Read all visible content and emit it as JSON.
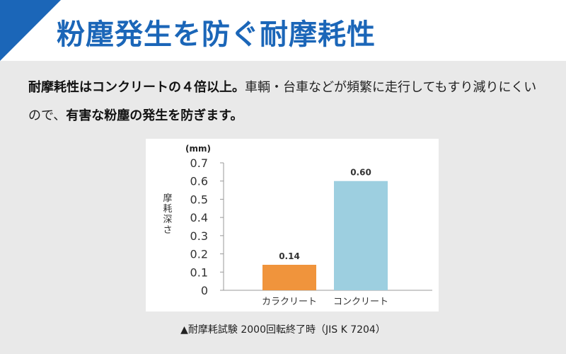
{
  "header": {
    "title": "粉塵発生を防ぐ耐摩耗性"
  },
  "description": {
    "bold_1": "耐摩耗性はコンクリートの４倍以上。",
    "text_1": "車輌・台車などが頻繁に走行してもすり減りにくいので、",
    "bold_2": "有害な粉塵の発生を防ぎます。"
  },
  "colors": {
    "accent_blue": "#1b66b8",
    "bar_orange": "#f0943c",
    "bar_lightblue": "#9dcfe0"
  },
  "chart_data": {
    "type": "bar",
    "unit": "(mm)",
    "ylabel": "摩耗深さ",
    "categories": [
      "カラクリート",
      "コンクリート"
    ],
    "values": [
      0.14,
      0.6
    ],
    "value_labels": [
      "0.14",
      "0.60"
    ],
    "bar_colors": [
      "#f0943c",
      "#9dcfe0"
    ],
    "ylim": [
      0,
      0.7
    ],
    "yticks": [
      "0",
      "0.1",
      "0.2",
      "0.3",
      "0.4",
      "0.5",
      "0.6",
      "0.7"
    ],
    "grid": false
  },
  "caption": "▲耐摩耗試験 2000回転終了時（JIS K 7204）"
}
